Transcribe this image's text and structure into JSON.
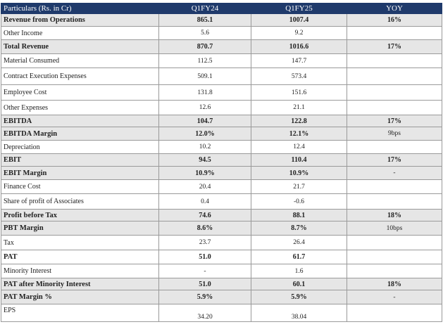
{
  "table": {
    "headers": [
      "Particulars (Rs. in Cr)",
      "Q1FY24",
      "Q1FY25",
      "YOY"
    ],
    "header_bg": "#1f3a6b",
    "bold_row_bg": "#e6e6e6",
    "rows": [
      {
        "label": "Revenue from Operations",
        "q1fy24": "865.1",
        "q1fy25": "1007.4",
        "yoy": "16%",
        "bold": true
      },
      {
        "label": "Other Income",
        "q1fy24": "5.6",
        "q1fy25": "9.2",
        "yoy": "",
        "bold": false
      },
      {
        "label": "Total Revenue",
        "q1fy24": "870.7",
        "q1fy25": "1016.6",
        "yoy": "17%",
        "bold": true
      },
      {
        "label": "Material Consumed",
        "q1fy24": "112.5",
        "q1fy25": "147.7",
        "yoy": "",
        "bold": false
      },
      {
        "label": "Contract Execution Expenses",
        "q1fy24": "509.1",
        "q1fy25": "573.4",
        "yoy": "",
        "bold": false
      },
      {
        "label": "Employee Cost",
        "q1fy24": "131.8",
        "q1fy25": "151.6",
        "yoy": "",
        "bold": false
      },
      {
        "label": "Other Expenses",
        "q1fy24": "12.6",
        "q1fy25": "21.1",
        "yoy": "",
        "bold": false
      },
      {
        "label": "EBITDA",
        "q1fy24": "104.7",
        "q1fy25": "122.8",
        "yoy": "17%",
        "bold": true
      },
      {
        "label": "EBITDA Margin",
        "q1fy24": "12.0%",
        "q1fy25": "12.1%",
        "yoy": "9bps",
        "bold": true,
        "yoy_plain": true
      },
      {
        "label": "Depreciation",
        "q1fy24": "10.2",
        "q1fy25": "12.4",
        "yoy": "",
        "bold": false
      },
      {
        "label": "EBIT",
        "q1fy24": "94.5",
        "q1fy25": "110.4",
        "yoy": "17%",
        "bold": true
      },
      {
        "label": "EBIT Margin",
        "q1fy24": "10.9%",
        "q1fy25": "10.9%",
        "yoy": "-",
        "bold": true,
        "yoy_plain": true
      },
      {
        "label": "Finance Cost",
        "q1fy24": "20.4",
        "q1fy25": "21.7",
        "yoy": "",
        "bold": false
      },
      {
        "label": "Share of profit of Associates",
        "q1fy24": "0.4",
        "q1fy25": "-0.6",
        "yoy": "",
        "bold": false
      },
      {
        "label": "Profit before Tax",
        "q1fy24": "74.6",
        "q1fy25": "88.1",
        "yoy": "18%",
        "bold": true
      },
      {
        "label": "PBT Margin",
        "q1fy24": "8.6%",
        "q1fy25": "8.7%",
        "yoy": "10bps",
        "bold": true,
        "yoy_plain": true
      },
      {
        "label": "Tax",
        "q1fy24": "23.7",
        "q1fy25": "26.4",
        "yoy": "",
        "bold": false
      },
      {
        "label": "PAT",
        "q1fy24": "51.0",
        "q1fy25": "61.7",
        "yoy": "",
        "bold": false,
        "label_bold": true,
        "num_bold": true
      },
      {
        "label": "Minority Interest",
        "q1fy24": "-",
        "q1fy25": "1.6",
        "yoy": "",
        "bold": false
      },
      {
        "label": "PAT after Minority Interest",
        "q1fy24": "51.0",
        "q1fy25": "60.1",
        "yoy": "18%",
        "bold": true
      },
      {
        "label": "PAT Margin %",
        "q1fy24": "5.9%",
        "q1fy25": "5.9%",
        "yoy": "-",
        "bold": true,
        "yoy_plain": true
      },
      {
        "label": "EPS",
        "q1fy24": "34.20",
        "q1fy25": "38.04",
        "yoy": "",
        "bold": false,
        "tall": true
      }
    ]
  }
}
